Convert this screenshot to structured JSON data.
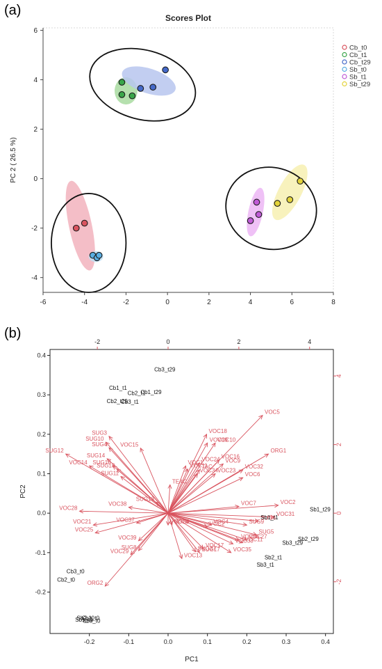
{
  "panels": {
    "a_label": "(a)",
    "b_label": "(b)"
  },
  "chart_data": [
    {
      "type": "scatter",
      "title": "Scores Plot",
      "xlabel": "",
      "ylabel": "PC 2 ( 26.5 %)",
      "xlim": [
        -6,
        8
      ],
      "ylim": [
        -4.6,
        6.1
      ],
      "xticks": [
        "-6",
        "-4",
        "-2",
        "0",
        "2",
        "4",
        "6",
        "8"
      ],
      "yticks": [
        "-4",
        "-2",
        "0",
        "2",
        "4",
        "6"
      ],
      "legend_position": "right",
      "series": [
        {
          "name": "Cb_t0",
          "color": "#d9545f",
          "points": [
            [
              -4.4,
              -2.0
            ],
            [
              -4.0,
              -1.8
            ]
          ]
        },
        {
          "name": "Cb_t1",
          "color": "#3aa64a",
          "points": [
            [
              -2.2,
              3.9
            ],
            [
              -2.2,
              3.4
            ],
            [
              -1.7,
              3.35
            ]
          ]
        },
        {
          "name": "Cb_t29",
          "color": "#4469c9",
          "points": [
            [
              -1.3,
              3.65
            ],
            [
              -0.7,
              3.7
            ],
            [
              -0.1,
              4.4
            ]
          ]
        },
        {
          "name": "Sb_t0",
          "color": "#5aaee2",
          "points": [
            [
              -3.6,
              -3.1
            ],
            [
              -3.4,
              -3.2
            ],
            [
              -3.3,
              -3.1
            ]
          ]
        },
        {
          "name": "Sb_t1",
          "color": "#c05bd6",
          "points": [
            [
              4.0,
              -1.7
            ],
            [
              4.3,
              -0.95
            ],
            [
              4.4,
              -1.45
            ]
          ]
        },
        {
          "name": "Sb_t29",
          "color": "#e3d33a",
          "points": [
            [
              5.3,
              -1.0
            ],
            [
              5.9,
              -0.85
            ],
            [
              6.4,
              -0.1
            ]
          ]
        }
      ],
      "confidence_ellipses": [
        {
          "series": "Cb_t0",
          "center": [
            -4.2,
            -1.9
          ],
          "rx": 0.55,
          "ry": 1.85,
          "angle": -12,
          "color": "#f2b3bd"
        },
        {
          "series": "Cb_t1",
          "center": [
            -2.0,
            3.55
          ],
          "rx": 0.55,
          "ry": 0.55,
          "angle": 0,
          "color": "#a8dba0"
        },
        {
          "series": "Cb_t29",
          "center": [
            -0.9,
            3.95
          ],
          "rx": 1.35,
          "ry": 0.5,
          "angle": 18,
          "color": "#b7c5ee"
        },
        {
          "series": "Sb_t0",
          "center": [
            -3.45,
            -3.15
          ],
          "rx": 0.35,
          "ry": 0.22,
          "angle": 0,
          "color": "#bfe0f4"
        },
        {
          "series": "Sb_t1",
          "center": [
            4.25,
            -1.35
          ],
          "rx": 0.35,
          "ry": 1.0,
          "angle": 12,
          "color": "#ecb6f5"
        },
        {
          "series": "Sb_t29",
          "center": [
            5.9,
            -0.55
          ],
          "rx": 0.55,
          "ry": 1.25,
          "angle": 28,
          "color": "#f7f0b2"
        }
      ],
      "cluster_ellipses": [
        {
          "center": [
            -1.2,
            3.8
          ],
          "rx": 2.6,
          "ry": 1.4,
          "angle": 15
        },
        {
          "center": [
            -3.8,
            -2.6
          ],
          "rx": 1.8,
          "ry": 2.0,
          "angle": 0
        },
        {
          "center": [
            5.0,
            -1.2
          ],
          "rx": 2.2,
          "ry": 1.65,
          "angle": 15
        }
      ]
    },
    {
      "type": "scatter",
      "title": "",
      "xlabel": "PC1",
      "ylabel": "PC2",
      "xlim": [
        -0.3,
        0.42
      ],
      "ylim": [
        -0.305,
        0.415
      ],
      "xticks": [
        "-0.2",
        "-0.1",
        "0.0",
        "0.1",
        "0.2",
        "0.3",
        "0.4"
      ],
      "yticks": [
        "-0.2",
        "-0.1",
        "0.0",
        "0.1",
        "0.2",
        "0.3",
        "0.4"
      ],
      "top_xticks": [
        "-2",
        "0",
        "2",
        "4"
      ],
      "right_yticks": [
        "-2",
        "0",
        "2",
        "4"
      ],
      "sample_scores": [
        {
          "label": "Cb3_t29",
          "x": -0.035,
          "y": 0.365
        },
        {
          "label": "Cb1_t1",
          "x": -0.15,
          "y": 0.318
        },
        {
          "label": "Cb2_t1",
          "x": -0.103,
          "y": 0.305
        },
        {
          "label": "Cb1_t29",
          "x": -0.07,
          "y": 0.307
        },
        {
          "label": "Cb2_t29",
          "x": -0.156,
          "y": 0.284
        },
        {
          "label": "Cb3_t1",
          "x": -0.12,
          "y": 0.283
        },
        {
          "label": "Cb3_t0",
          "x": -0.258,
          "y": -0.147
        },
        {
          "label": "Cb2_t0",
          "x": -0.282,
          "y": -0.168
        },
        {
          "label": "Sb2_t0",
          "x": -0.232,
          "y": -0.265
        },
        {
          "label": "Cb1_t0",
          "x": -0.22,
          "y": -0.265
        },
        {
          "label": "Sb1_t0",
          "x": -0.236,
          "y": -0.27
        },
        {
          "label": "Sb3_t0",
          "x": -0.217,
          "y": -0.272
        },
        {
          "label": "Sb1_t1",
          "x": 0.235,
          "y": -0.01
        },
        {
          "label": "Sb1_t29",
          "x": 0.36,
          "y": 0.01
        },
        {
          "label": "Sb2_t29",
          "x": 0.33,
          "y": -0.065
        },
        {
          "label": "Sb3_t29",
          "x": 0.29,
          "y": -0.075
        },
        {
          "label": "Sb2_t1",
          "x": 0.245,
          "y": -0.112
        },
        {
          "label": "Sb3_t1",
          "x": 0.225,
          "y": -0.13
        }
      ],
      "loadings_color": "#d9545f",
      "loadings": [
        {
          "label": "VOC5",
          "x": 0.24,
          "y": 0.248
        },
        {
          "label": "VOC18",
          "x": 0.098,
          "y": 0.2
        },
        {
          "label": "VOC19",
          "x": 0.1,
          "y": 0.178
        },
        {
          "label": "VOC10",
          "x": 0.12,
          "y": 0.178
        },
        {
          "label": "VOC15",
          "x": -0.07,
          "y": 0.165
        },
        {
          "label": "SUG3",
          "x": -0.15,
          "y": 0.195
        },
        {
          "label": "SUG10",
          "x": -0.158,
          "y": 0.18
        },
        {
          "label": "SUG4",
          "x": -0.15,
          "y": 0.166
        },
        {
          "label": "SUG12",
          "x": -0.26,
          "y": 0.15
        },
        {
          "label": "SUG14",
          "x": -0.155,
          "y": 0.138
        },
        {
          "label": "VOC14",
          "x": -0.2,
          "y": 0.12
        },
        {
          "label": "SUG16",
          "x": -0.14,
          "y": 0.12
        },
        {
          "label": "SUG18",
          "x": -0.13,
          "y": 0.112
        },
        {
          "label": "SUG11",
          "x": -0.12,
          "y": 0.093
        },
        {
          "label": "VOC16",
          "x": 0.13,
          "y": 0.135
        },
        {
          "label": "VOC9",
          "x": 0.14,
          "y": 0.125
        },
        {
          "label": "VOC24",
          "x": 0.08,
          "y": 0.128
        },
        {
          "label": "VOC1",
          "x": 0.045,
          "y": 0.12
        },
        {
          "label": "VOC11",
          "x": 0.05,
          "y": 0.112
        },
        {
          "label": "TAC",
          "x": 0.08,
          "y": 0.11
        },
        {
          "label": "VOC34",
          "x": 0.075,
          "y": 0.1
        },
        {
          "label": "VOC23",
          "x": 0.12,
          "y": 0.1
        },
        {
          "label": "TEAC",
          "x": 0.005,
          "y": 0.072
        },
        {
          "label": "VOC32",
          "x": 0.19,
          "y": 0.11
        },
        {
          "label": "ORG1",
          "x": 0.255,
          "y": 0.15
        },
        {
          "label": "VOC6",
          "x": 0.19,
          "y": 0.09
        },
        {
          "label": "VOC2",
          "x": 0.28,
          "y": 0.02
        },
        {
          "label": "VOC7",
          "x": 0.18,
          "y": 0.017
        },
        {
          "label": "VOC38",
          "x": -0.1,
          "y": 0.015
        },
        {
          "label": "SUG13",
          "x": -0.03,
          "y": 0.028
        },
        {
          "label": "VOC28",
          "x": -0.225,
          "y": 0.005
        },
        {
          "label": "VOC21",
          "x": -0.19,
          "y": -0.03
        },
        {
          "label": "VOC25",
          "x": -0.185,
          "y": -0.05
        },
        {
          "label": "VOC37",
          "x": -0.08,
          "y": -0.025
        },
        {
          "label": "VOC26",
          "x": 0.0,
          "y": -0.03
        },
        {
          "label": "VOC8",
          "x": 0.01,
          "y": -0.03
        },
        {
          "label": "VOC31",
          "x": 0.27,
          "y": -0.01
        },
        {
          "label": "SUG6",
          "x": 0.23,
          "y": -0.02
        },
        {
          "label": "SUG9",
          "x": 0.2,
          "y": -0.03
        },
        {
          "label": "VOC4",
          "x": 0.11,
          "y": -0.03
        },
        {
          "label": "VOC2x",
          "x": 0.1,
          "y": -0.035
        },
        {
          "label": "SUG5",
          "x": 0.225,
          "y": -0.055
        },
        {
          "label": "VOC27",
          "x": 0.2,
          "y": -0.068
        },
        {
          "label": "VOC36",
          "x": 0.18,
          "y": -0.068
        },
        {
          "label": "VOC11x",
          "x": 0.19,
          "y": -0.075
        },
        {
          "label": "VOC33",
          "x": 0.165,
          "y": -0.078
        },
        {
          "label": "VOC17",
          "x": 0.09,
          "y": -0.09
        },
        {
          "label": "VOC35",
          "x": 0.16,
          "y": -0.1
        },
        {
          "label": "VOC39",
          "x": -0.075,
          "y": -0.07
        },
        {
          "label": "SUG8",
          "x": -0.075,
          "y": -0.095
        },
        {
          "label": "VOC29",
          "x": -0.095,
          "y": -0.105
        },
        {
          "label": "SUG17",
          "x": 0.08,
          "y": -0.1
        },
        {
          "label": "SUG37",
          "x": 0.07,
          "y": -0.098
        },
        {
          "label": "VOC13",
          "x": 0.035,
          "y": -0.115
        },
        {
          "label": "ORG2",
          "x": -0.16,
          "y": -0.185
        }
      ]
    }
  ]
}
